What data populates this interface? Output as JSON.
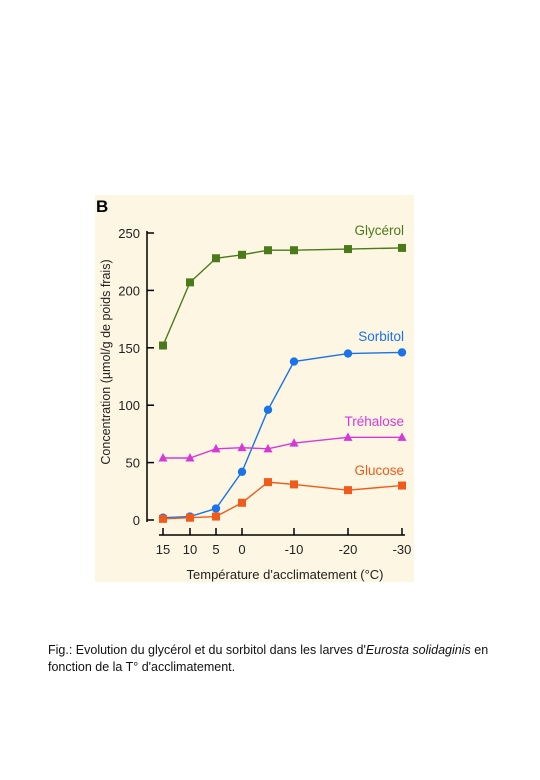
{
  "chart_data": {
    "type": "line",
    "panel_letter": "B",
    "xlabel": "Température d'acclimatement (°C)",
    "ylabel": "Concentration (µmol/g de poids frais)",
    "x_tick_labels": [
      "15",
      "10",
      "5",
      "0",
      "-10",
      "-20",
      "-30"
    ],
    "y_ticks": [
      0,
      50,
      100,
      150,
      200,
      250
    ],
    "ylim": [
      0,
      250
    ],
    "grid": false,
    "legend": "inline labels at right",
    "x": [
      15,
      10,
      5,
      0,
      -5,
      -10,
      -20,
      -30
    ],
    "series": [
      {
        "name": "Glycérol",
        "color": "#4a7a1a",
        "marker": "square",
        "values": [
          152,
          207,
          228,
          231,
          235,
          235,
          236,
          237
        ]
      },
      {
        "name": "Sorbitol",
        "color": "#1a73e8",
        "marker": "circle",
        "values": [
          2,
          3,
          10,
          42,
          96,
          138,
          145,
          146
        ]
      },
      {
        "name": "Tréhalose",
        "color": "#d63ad6",
        "marker": "triangle",
        "values": [
          54,
          54,
          62,
          63,
          62,
          67,
          72,
          72
        ]
      },
      {
        "name": "Glucose",
        "color": "#f05a1a",
        "marker": "square",
        "values": [
          1,
          2,
          3,
          15,
          33,
          31,
          26,
          30
        ]
      }
    ]
  },
  "caption": {
    "prefix": "Fig.:  Evolution du glycérol et du sorbitol dans les larves d'",
    "species": "Eurosta solidaginis",
    "suffix": " en fonction de la T° d'acclimatement."
  }
}
